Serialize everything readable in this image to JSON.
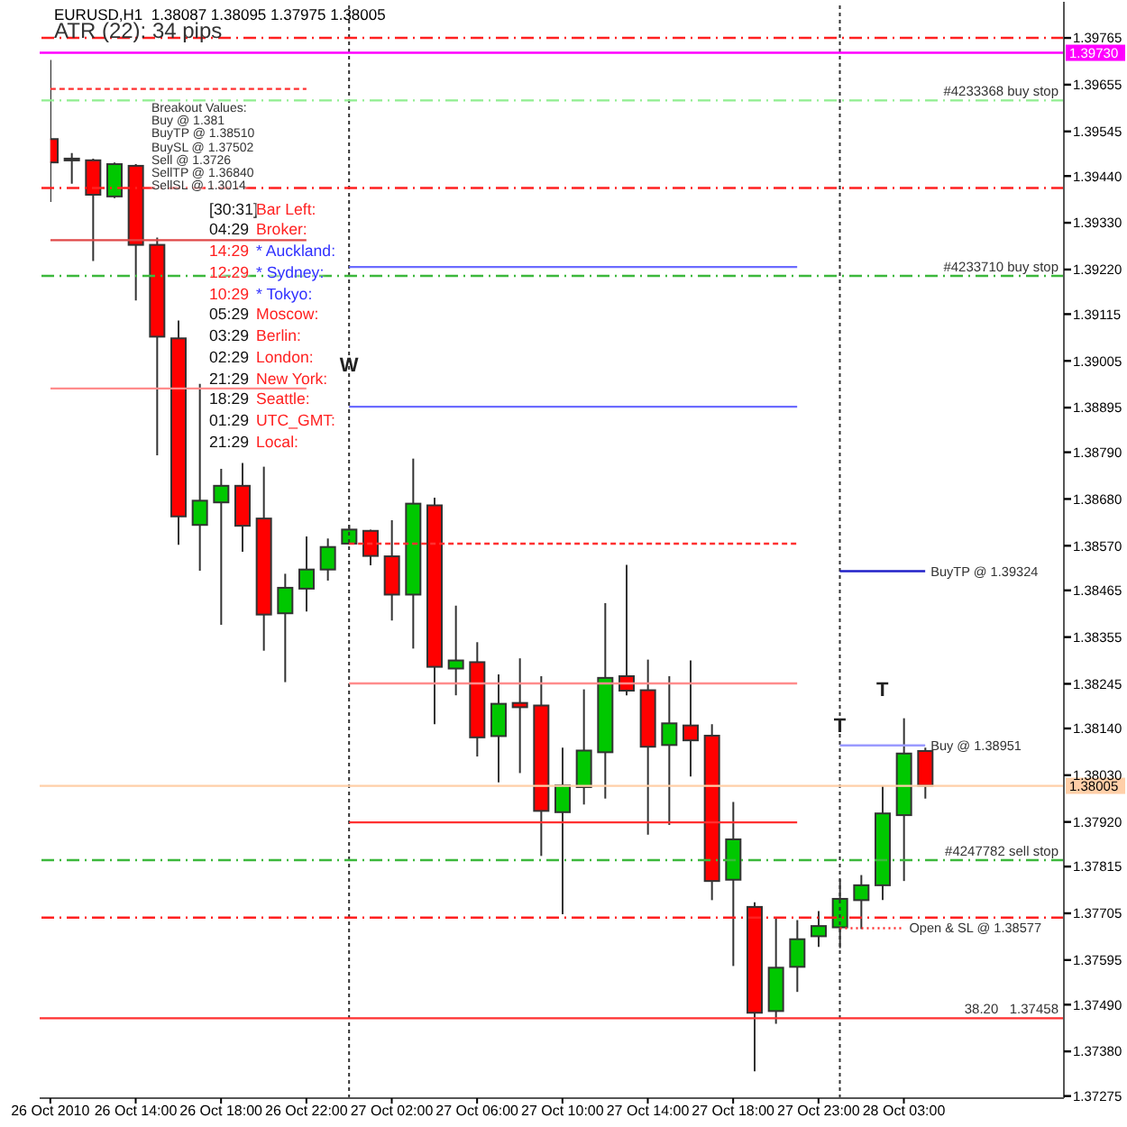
{
  "chart_data": {
    "type": "candlestick",
    "title": "EURUSD,H1  1.38087 1.38095 1.37975 1.38005",
    "categories": [
      "26 Oct 2010",
      null,
      null,
      null,
      "26 Oct 14:00",
      null,
      null,
      null,
      "26 Oct 18:00",
      null,
      null,
      null,
      "26 Oct 22:00",
      null,
      null,
      null,
      "27 Oct 02:00",
      null,
      null,
      null,
      "27 Oct 06:00",
      null,
      null,
      null,
      "27 Oct 10:00",
      null,
      null,
      null,
      "27 Oct 14:00",
      null,
      null,
      null,
      "27 Oct 18:00",
      null,
      null,
      null,
      "27 Oct 23:00",
      null,
      null,
      null,
      "28 Oct 03:00",
      null,
      null,
      null,
      null,
      null,
      null,
      null
    ],
    "ohlc": [
      [
        1.39527,
        1.39713,
        1.39379,
        1.39472
      ],
      [
        1.39481,
        1.39494,
        1.39422,
        1.39481
      ],
      [
        1.39477,
        1.39481,
        1.3924,
        1.39396
      ],
      [
        1.39392,
        1.39472,
        1.39388,
        1.39468
      ],
      [
        1.39464,
        1.39468,
        1.39147,
        1.39278
      ],
      [
        1.39278,
        1.39295,
        1.38783,
        1.39062
      ],
      [
        1.39058,
        1.391,
        1.38572,
        1.38639
      ],
      [
        1.38619,
        1.38951,
        1.38511,
        1.38676
      ],
      [
        1.38672,
        1.38751,
        1.38384,
        1.38711
      ],
      [
        1.38711,
        1.38765,
        1.38556,
        1.38617
      ],
      [
        1.38634,
        1.38756,
        1.38323,
        1.38408
      ],
      [
        1.38411,
        1.38504,
        1.38249,
        1.38471
      ],
      [
        1.38469,
        1.38592,
        1.38415,
        1.38514
      ],
      [
        1.38514,
        1.38587,
        1.38488,
        1.38567
      ],
      [
        1.38575,
        1.38619,
        1.38575,
        1.38608
      ],
      [
        1.38605,
        1.38608,
        1.38524,
        1.38546
      ],
      [
        1.38545,
        1.3863,
        1.38394,
        1.38455
      ],
      [
        1.38455,
        1.38775,
        1.38328,
        1.38669
      ],
      [
        1.38665,
        1.38683,
        1.3815,
        1.38285
      ],
      [
        1.38281,
        1.38429,
        1.38218,
        1.383
      ],
      [
        1.38296,
        1.38343,
        1.38074,
        1.38119
      ],
      [
        1.38122,
        1.38267,
        1.38013,
        1.38198
      ],
      [
        1.382,
        1.38305,
        1.38035,
        1.3819
      ],
      [
        1.38194,
        1.38263,
        1.3784,
        1.37946
      ],
      [
        1.37943,
        1.38095,
        1.37703,
        1.38006
      ],
      [
        1.38002,
        1.38232,
        1.37961,
        1.38088
      ],
      [
        1.38084,
        1.38435,
        1.37975,
        1.38259
      ],
      [
        1.38263,
        1.38525,
        1.38218,
        1.38229
      ],
      [
        1.3823,
        1.38302,
        1.3789,
        1.38097
      ],
      [
        1.38101,
        1.38263,
        1.37913,
        1.38152
      ],
      [
        1.38147,
        1.383,
        1.38027,
        1.38112
      ],
      [
        1.38123,
        1.3815,
        1.37736,
        1.37781
      ],
      [
        1.37784,
        1.37967,
        1.37581,
        1.37879
      ],
      [
        1.3772,
        1.37731,
        1.37333,
        1.37471
      ],
      [
        1.37475,
        1.37696,
        1.37445,
        1.37577
      ],
      [
        1.37579,
        1.37689,
        1.3752,
        1.37644
      ],
      [
        1.37651,
        1.3771,
        1.37626,
        1.37675
      ],
      [
        1.37672,
        1.37785,
        1.37623,
        1.37739
      ],
      [
        1.37736,
        1.37795,
        1.37668,
        1.37771
      ],
      [
        1.37771,
        1.38006,
        1.37736,
        1.3794
      ],
      [
        1.37936,
        1.38164,
        1.37781,
        1.38081
      ],
      [
        1.38087,
        1.38095,
        1.37975,
        1.38005
      ],
      null,
      null,
      null,
      null,
      null,
      null
    ],
    "colors": [
      "#ff0000",
      "#00c800",
      "#ff0000",
      "#00c800",
      "#ff0000",
      "#ff0000",
      "#ff0000",
      "#00c800",
      "#00c800",
      "#ff0000",
      "#ff0000",
      "#00c800",
      "#00c800",
      "#00c800",
      "#00c800",
      "#ff0000",
      "#ff0000",
      "#00c800",
      "#ff0000",
      "#00c800",
      "#ff0000",
      "#00c800",
      "#ff0000",
      "#ff0000",
      "#00c800",
      "#00c800",
      "#00c800",
      "#ff0000",
      "#ff0000",
      "#00c800",
      "#ff0000",
      "#ff0000",
      "#00c800",
      "#ff0000",
      "#00c800",
      "#00c800",
      "#00c800",
      "#00c800",
      "#00c800",
      "#00c800",
      "#00c800",
      "#ff0000",
      null,
      null,
      null,
      null,
      null,
      null
    ],
    "ylim": [
      1.3727,
      1.3985
    ],
    "yticks": [
      1.37275,
      {
        "value": 1.3738,
        "label": "1.37380"
      },
      {
        "value": 1.3749,
        "label": "1.37490"
      },
      1.37595,
      1.37705,
      1.37815,
      {
        "value": 1.3792,
        "label": "1.37920"
      },
      {
        "value": 1.3803,
        "label": "1.38030"
      },
      {
        "value": 1.3814,
        "label": "1.38140"
      },
      1.38245,
      1.38355,
      1.38465,
      {
        "value": 1.3857,
        "label": "1.38570"
      },
      {
        "value": 1.3868,
        "label": "1.38680"
      },
      {
        "value": 1.3879,
        "label": "1.38790"
      },
      1.38895,
      1.39005,
      1.39115,
      {
        "value": 1.3922,
        "label": "1.39220"
      },
      {
        "value": 1.3933,
        "label": "1.39330"
      },
      {
        "value": 1.3944,
        "label": "1.39440"
      },
      1.39545,
      1.39655,
      1.39765
    ],
    "series": [
      {
        "type": "line",
        "color": "#ff3030",
        "line_style": "dashed",
        "values": [
          1.39645,
          1.39645,
          1.39645,
          1.39645,
          1.39645,
          1.39645,
          1.39645,
          1.39645,
          1.39645,
          1.39645,
          1.39645,
          1.39645,
          1.39645,
          null,
          null,
          null,
          null,
          null,
          null,
          null,
          null,
          null,
          null,
          null,
          null,
          null,
          null,
          null,
          null,
          null,
          null,
          null,
          null,
          null,
          null,
          null,
          null,
          null,
          null,
          null,
          null,
          null,
          null,
          null,
          null,
          null,
          null,
          null
        ]
      },
      {
        "type": "line",
        "color": "#e04848",
        "values": [
          1.39289,
          1.39289,
          1.39289,
          1.39289,
          1.39289,
          1.39289,
          1.39289,
          1.39289,
          1.39289,
          1.39289,
          1.39289,
          1.39289,
          1.39289,
          null,
          null,
          null,
          null,
          null,
          null,
          null,
          null,
          null,
          null,
          null,
          null,
          null,
          null,
          null,
          null,
          null,
          null,
          null,
          null,
          null,
          null,
          null,
          null,
          null,
          null,
          null,
          null,
          null,
          null,
          null,
          null,
          null,
          null,
          null
        ]
      },
      {
        "type": "line",
        "color": "#ff8c8c",
        "values": [
          1.3894,
          1.3894,
          1.3894,
          1.3894,
          1.3894,
          1.3894,
          1.3894,
          1.3894,
          1.3894,
          1.3894,
          1.3894,
          1.3894,
          1.3894,
          null,
          null,
          null,
          null,
          null,
          null,
          null,
          null,
          null,
          null,
          null,
          null,
          null,
          null,
          null,
          null,
          null,
          null,
          null,
          null,
          null,
          null,
          null,
          null,
          null,
          null,
          null,
          null,
          null,
          null,
          null,
          null,
          null,
          null,
          null
        ]
      },
      {
        "type": "line",
        "color": "#6b6bff",
        "values": [
          null,
          null,
          null,
          null,
          null,
          null,
          null,
          null,
          null,
          null,
          null,
          null,
          null,
          null,
          1.39226,
          1.39226,
          1.39226,
          1.39226,
          1.39226,
          1.39226,
          1.39226,
          1.39226,
          1.39226,
          1.39226,
          1.39226,
          1.39226,
          1.39226,
          1.39226,
          1.39226,
          1.39226,
          1.39226,
          1.39226,
          1.39226,
          1.39226,
          1.39226,
          1.39226,
          null,
          null,
          null,
          null,
          null,
          null,
          null,
          null,
          null,
          null,
          null,
          null
        ]
      },
      {
        "type": "line",
        "color": "#6b6bff",
        "values": [
          null,
          null,
          null,
          null,
          null,
          null,
          null,
          null,
          null,
          null,
          null,
          null,
          null,
          null,
          1.38897,
          1.38897,
          1.38897,
          1.38897,
          1.38897,
          1.38897,
          1.38897,
          1.38897,
          1.38897,
          1.38897,
          1.38897,
          1.38897,
          1.38897,
          1.38897,
          1.38897,
          1.38897,
          1.38897,
          1.38897,
          1.38897,
          1.38897,
          1.38897,
          1.38897,
          null,
          null,
          null,
          null,
          null,
          null,
          null,
          null,
          null,
          null,
          null,
          null
        ]
      },
      {
        "type": "line",
        "color": "#ff3030",
        "line_style": "dashed",
        "values": [
          null,
          null,
          null,
          null,
          null,
          null,
          null,
          null,
          null,
          null,
          null,
          null,
          null,
          null,
          1.38575,
          1.38575,
          1.38575,
          1.38575,
          1.38575,
          1.38575,
          1.38575,
          1.38575,
          1.38575,
          1.38575,
          1.38575,
          1.38575,
          1.38575,
          1.38575,
          1.38575,
          1.38575,
          1.38575,
          1.38575,
          1.38575,
          1.38575,
          1.38575,
          1.38575,
          null,
          null,
          null,
          null,
          null,
          null,
          null,
          null,
          null,
          null,
          null,
          null
        ]
      },
      {
        "type": "line",
        "color": "#ff8c8c",
        "values": [
          null,
          null,
          null,
          null,
          null,
          null,
          null,
          null,
          null,
          null,
          null,
          null,
          null,
          null,
          1.38246,
          1.38246,
          1.38246,
          1.38246,
          1.38246,
          1.38246,
          1.38246,
          1.38246,
          1.38246,
          1.38246,
          1.38246,
          1.38246,
          1.38246,
          1.38246,
          1.38246,
          1.38246,
          1.38246,
          1.38246,
          1.38246,
          1.38246,
          1.38246,
          1.38246,
          null,
          null,
          null,
          null,
          null,
          null,
          null,
          null,
          null,
          null,
          null,
          null
        ]
      },
      {
        "type": "line",
        "color": "#ff3030",
        "values": [
          null,
          null,
          null,
          null,
          null,
          null,
          null,
          null,
          null,
          null,
          null,
          null,
          null,
          null,
          1.37919,
          1.37919,
          1.37919,
          1.37919,
          1.37919,
          1.37919,
          1.37919,
          1.37919,
          1.37919,
          1.37919,
          1.37919,
          1.37919,
          1.37919,
          1.37919,
          1.37919,
          1.37919,
          1.37919,
          1.37919,
          1.37919,
          1.37919,
          1.37919,
          1.37919,
          null,
          null,
          null,
          null,
          null,
          null,
          null,
          null,
          null,
          null,
          null,
          null
        ]
      },
      {
        "type": "line",
        "name": "BuyTP @ 1.39324",
        "color": "#2020c8",
        "values": [
          null,
          null,
          null,
          null,
          null,
          null,
          null,
          null,
          null,
          null,
          null,
          null,
          null,
          null,
          null,
          null,
          null,
          null,
          null,
          null,
          null,
          null,
          null,
          null,
          null,
          null,
          null,
          null,
          null,
          null,
          null,
          null,
          null,
          null,
          null,
          null,
          null,
          1.3851,
          1.3851,
          1.3851,
          1.3851,
          1.3851,
          null,
          null,
          null,
          null,
          null,
          null
        ]
      },
      {
        "type": "line",
        "name": "Buy @ 1.38951",
        "color": "#9a9aff",
        "values": [
          null,
          null,
          null,
          null,
          null,
          null,
          null,
          null,
          null,
          null,
          null,
          null,
          null,
          null,
          null,
          null,
          null,
          null,
          null,
          null,
          null,
          null,
          null,
          null,
          null,
          null,
          null,
          null,
          null,
          null,
          null,
          null,
          null,
          null,
          null,
          null,
          null,
          1.381,
          1.381,
          1.381,
          1.381,
          1.381,
          null,
          null,
          null,
          null,
          null,
          null
        ]
      },
      {
        "type": "line",
        "name": "Open & SL @ 1.38577",
        "color": "#ff3030",
        "line_style": "dotted",
        "values": [
          null,
          null,
          null,
          null,
          null,
          null,
          null,
          null,
          null,
          null,
          null,
          null,
          null,
          null,
          null,
          null,
          null,
          null,
          null,
          null,
          null,
          null,
          null,
          null,
          null,
          null,
          null,
          null,
          null,
          null,
          null,
          null,
          null,
          null,
          null,
          null,
          null,
          1.3767,
          1.3767,
          1.3767,
          1.3767,
          null,
          null,
          null,
          null,
          null,
          null,
          null
        ]
      }
    ],
    "ref_lines": [
      {
        "axis": "y",
        "value": 1.39765,
        "color": "#ff2020",
        "line_style": "dashdot"
      },
      {
        "axis": "y",
        "value": 1.3973,
        "color": "#ff00ff",
        "label": "1.39730"
      },
      {
        "axis": "y",
        "value": 1.39618,
        "color": "#90ee90",
        "line_style": "dashdot",
        "label": "#4233368 buy stop"
      },
      {
        "axis": "y",
        "value": 1.39412,
        "color": "#ff2020",
        "line_style": "dashdot"
      },
      {
        "axis": "y",
        "value": 1.39205,
        "color": "#3cb83c",
        "line_style": "dashdot",
        "label": "#4233710 buy stop"
      },
      {
        "axis": "y",
        "value": 1.38005,
        "color": "#ffcfa8",
        "label": "1.38005"
      },
      {
        "axis": "y",
        "value": 1.3783,
        "color": "#3cb83c",
        "line_style": "dashdot",
        "label": "#4247782 sell stop"
      },
      {
        "axis": "y",
        "value": 1.37695,
        "color": "#ff2020",
        "line_style": "dashdot"
      },
      {
        "axis": "y",
        "value": 1.37458,
        "color": "#ff3030",
        "label": "38.20   1.37458"
      }
    ],
    "annotations": [
      "ATR (22): 34 pips",
      "Breakout Values:",
      "Buy @ 1.381",
      "BuyTP @ 1.38510",
      "BuySL @ 1.37502",
      "Sell @ 1.3726",
      "SellTP @ 1.36840",
      "SellSL @ 1.3014",
      "[30:31]",
      "Bar Left:",
      "04:29",
      "Broker:",
      "14:29",
      "* Auckland:",
      "12:29",
      "* Sydney:",
      "10:29",
      "* Tokyo:",
      "05:29",
      "Moscow:",
      "03:29",
      "Berlin:",
      "02:29",
      "London:",
      "21:29",
      "New York:",
      "18:29",
      "Seattle:",
      "01:29",
      "UTC_GMT:",
      "21:29",
      "Local:",
      "W",
      "T",
      "T"
    ]
  }
}
